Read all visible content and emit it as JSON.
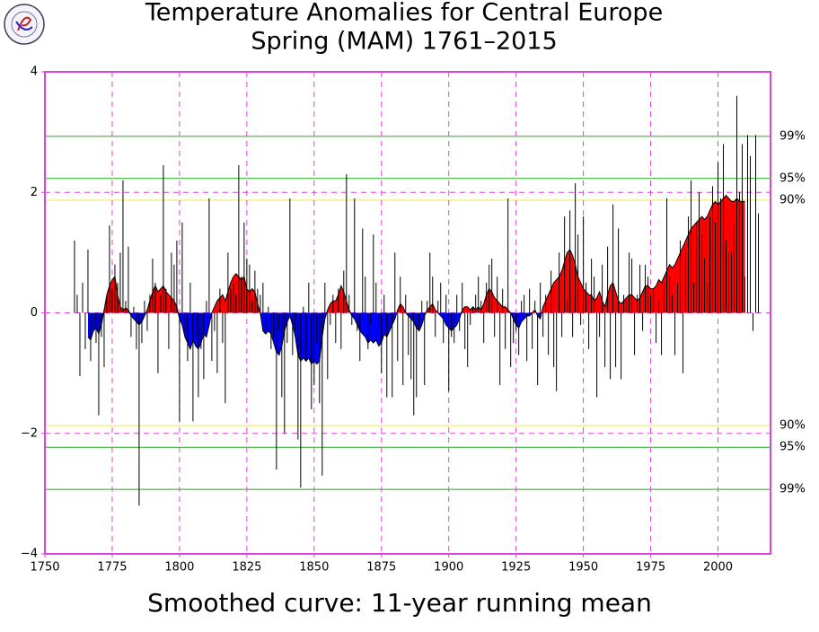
{
  "chart_data": {
    "type": "anomaly",
    "title": "Temperature Anomalies for Central Europe",
    "subtitle": "Spring (MAM) 1761–2015",
    "caption": "Smoothed curve: 11-year running mean",
    "xlim": [
      1750,
      2019.5
    ],
    "ylim": [
      -4,
      4
    ],
    "xticks": [
      1750,
      1775,
      1800,
      1825,
      1850,
      1875,
      1900,
      1925,
      1950,
      1975,
      2000
    ],
    "yticks": [
      {
        "value": -4,
        "label": "−4"
      },
      {
        "value": -2,
        "label": "−2"
      },
      0,
      2,
      4
    ],
    "grid": true,
    "grid_color": "#dd44dd",
    "frame_color": "#dd44dd",
    "bar_color": "#000000",
    "color_positive": "#ff0000",
    "color_negative": "#0000ff",
    "reference_lines": [
      {
        "value": 2.93,
        "label": "99%",
        "color": "#22aa22"
      },
      {
        "value": 2.23,
        "label": "95%",
        "color": "#22aa22"
      },
      {
        "value": 1.87,
        "label": "90%",
        "color": "#eeee44"
      },
      {
        "value": -1.87,
        "label": "90%",
        "color": "#eeee44"
      },
      {
        "value": -2.23,
        "label": "95%",
        "color": "#22aa22"
      },
      {
        "value": -2.93,
        "label": "99%",
        "color": "#22aa22"
      }
    ],
    "x": [
      1761,
      1762,
      1763,
      1764,
      1765,
      1766,
      1767,
      1768,
      1769,
      1770,
      1771,
      1772,
      1773,
      1774,
      1775,
      1776,
      1777,
      1778,
      1779,
      1780,
      1781,
      1782,
      1783,
      1784,
      1785,
      1786,
      1787,
      1788,
      1789,
      1790,
      1791,
      1792,
      1793,
      1794,
      1795,
      1796,
      1797,
      1798,
      1799,
      1800,
      1801,
      1802,
      1803,
      1804,
      1805,
      1806,
      1807,
      1808,
      1809,
      1810,
      1811,
      1812,
      1813,
      1814,
      1815,
      1816,
      1817,
      1818,
      1819,
      1820,
      1821,
      1822,
      1823,
      1824,
      1825,
      1826,
      1827,
      1828,
      1829,
      1830,
      1831,
      1832,
      1833,
      1834,
      1835,
      1836,
      1837,
      1838,
      1839,
      1840,
      1841,
      1842,
      1843,
      1844,
      1845,
      1846,
      1847,
      1848,
      1849,
      1850,
      1851,
      1852,
      1853,
      1854,
      1855,
      1856,
      1857,
      1858,
      1859,
      1860,
      1861,
      1862,
      1863,
      1864,
      1865,
      1866,
      1867,
      1868,
      1869,
      1870,
      1871,
      1872,
      1873,
      1874,
      1875,
      1876,
      1877,
      1878,
      1879,
      1880,
      1881,
      1882,
      1883,
      1884,
      1885,
      1886,
      1887,
      1888,
      1889,
      1890,
      1891,
      1892,
      1893,
      1894,
      1895,
      1896,
      1897,
      1898,
      1899,
      1900,
      1901,
      1902,
      1903,
      1904,
      1905,
      1906,
      1907,
      1908,
      1909,
      1910,
      1911,
      1912,
      1913,
      1914,
      1915,
      1916,
      1917,
      1918,
      1919,
      1920,
      1921,
      1922,
      1923,
      1924,
      1925,
      1926,
      1927,
      1928,
      1929,
      1930,
      1931,
      1932,
      1933,
      1934,
      1935,
      1936,
      1937,
      1938,
      1939,
      1940,
      1941,
      1942,
      1943,
      1944,
      1945,
      1946,
      1947,
      1948,
      1949,
      1950,
      1951,
      1952,
      1953,
      1954,
      1955,
      1956,
      1957,
      1958,
      1959,
      1960,
      1961,
      1962,
      1963,
      1964,
      1965,
      1966,
      1967,
      1968,
      1969,
      1970,
      1971,
      1972,
      1973,
      1974,
      1975,
      1976,
      1977,
      1978,
      1979,
      1980,
      1981,
      1982,
      1983,
      1984,
      1985,
      1986,
      1987,
      1988,
      1989,
      1990,
      1991,
      1992,
      1993,
      1994,
      1995,
      1996,
      1997,
      1998,
      1999,
      2000,
      2001,
      2002,
      2003,
      2004,
      2005,
      2006,
      2007,
      2008,
      2009,
      2010,
      2011,
      2012,
      2013,
      2014,
      2015
    ],
    "values": [
      1.2,
      0.3,
      -1.05,
      0.5,
      -0.6,
      1.05,
      -0.8,
      -0.3,
      -0.5,
      -1.7,
      -0.4,
      -0.9,
      0.3,
      1.45,
      0.4,
      0.8,
      0.5,
      1.0,
      2.2,
      0.2,
      1.1,
      -0.4,
      0.1,
      -0.6,
      -3.2,
      -0.5,
      0.2,
      -0.3,
      0.3,
      0.9,
      0.5,
      -1.0,
      0.3,
      2.45,
      0.4,
      -0.6,
      1.0,
      0.8,
      1.2,
      -1.8,
      1.5,
      -0.3,
      -0.8,
      0.5,
      -1.8,
      -0.4,
      -1.4,
      -0.6,
      -1.1,
      0.2,
      1.9,
      -0.8,
      -0.3,
      -1.0,
      0.4,
      -0.5,
      -1.5,
      1.0,
      0.4,
      0.5,
      0.3,
      2.45,
      0.6,
      1.5,
      0.9,
      0.8,
      0.2,
      0.7,
      0.4,
      0.3,
      0.5,
      -0.3,
      0.1,
      -0.6,
      -0.4,
      -2.6,
      -0.3,
      -1.4,
      -2.0,
      -0.5,
      1.9,
      -0.7,
      -0.3,
      -2.1,
      -2.9,
      0.1,
      -0.8,
      0.5,
      -1.6,
      -1.2,
      -0.5,
      -1.5,
      -2.7,
      0.5,
      -1.1,
      -0.2,
      0.3,
      -0.5,
      0.4,
      -0.6,
      0.7,
      2.3,
      0.3,
      -0.2,
      1.9,
      -0.3,
      -0.8,
      1.4,
      0.6,
      -0.6,
      -0.2,
      1.3,
      0.5,
      -0.2,
      -1.0,
      0.3,
      -1.4,
      -0.3,
      -1.4,
      1.0,
      -0.8,
      0.6,
      -1.2,
      0.3,
      -0.7,
      -1.1,
      -1.7,
      -1.4,
      -0.3,
      0.2,
      -1.2,
      0.2,
      1.0,
      0.6,
      -0.4,
      0.2,
      0.5,
      -0.5,
      0.3,
      -1.3,
      -0.4,
      -0.5,
      0.3,
      -0.3,
      0.5,
      -0.6,
      -0.9,
      -0.2,
      0.1,
      0.3,
      0.6,
      0.2,
      -0.5,
      0.5,
      0.8,
      0.9,
      -0.4,
      0.6,
      -1.2,
      0.4,
      -0.6,
      1.9,
      -0.9,
      -0.5,
      -0.3,
      -0.7,
      0.2,
      0.3,
      -0.8,
      0.4,
      -0.6,
      0.2,
      -1.2,
      0.5,
      -0.4,
      0.3,
      -0.7,
      0.7,
      -0.9,
      -1.3,
      1.0,
      -0.4,
      1.6,
      0.2,
      1.7,
      -0.4,
      2.15,
      1.3,
      -0.2,
      1.6,
      0.5,
      -0.6,
      0.9,
      0.6,
      -1.4,
      -0.4,
      0.8,
      -0.9,
      1.1,
      -1.1,
      1.8,
      -0.9,
      1.4,
      -1.1,
      0.3,
      0.2,
      1.0,
      0.9,
      -0.7,
      0.3,
      0.8,
      -0.3,
      0.8,
      0.6,
      0.3,
      0.4,
      -0.5,
      0.2,
      -0.7,
      0.5,
      1.9,
      0.6,
      0.3,
      -0.7,
      0.5,
      1.2,
      -1.0,
      1.0,
      1.6,
      2.2,
      0.5,
      1.5,
      2.0,
      1.3,
      0.9,
      0.5,
      1.6,
      2.1,
      1.5,
      2.5,
      1.9,
      2.8,
      1.2,
      1.0,
      1.0,
      1.5,
      3.6,
      2.0,
      2.8,
      0.6,
      2.95,
      2.6,
      -0.3,
      2.95,
      1.65
    ],
    "smoothed": [
      null,
      null,
      null,
      null,
      null,
      -0.4,
      -0.45,
      -0.3,
      -0.25,
      -0.35,
      -0.2,
      0.05,
      0.3,
      0.45,
      0.55,
      0.6,
      0.3,
      0.1,
      0.05,
      0.08,
      0.05,
      -0.05,
      -0.1,
      -0.15,
      -0.2,
      -0.15,
      -0.05,
      0.05,
      0.2,
      0.35,
      0.45,
      0.35,
      0.4,
      0.45,
      0.35,
      0.3,
      0.25,
      0.2,
      0.1,
      -0.1,
      -0.2,
      -0.4,
      -0.5,
      -0.6,
      -0.45,
      -0.55,
      -0.6,
      -0.5,
      -0.35,
      -0.4,
      -0.2,
      0.0,
      0.1,
      0.2,
      0.25,
      0.3,
      0.2,
      0.35,
      0.5,
      0.6,
      0.65,
      0.6,
      0.55,
      0.6,
      0.4,
      0.35,
      0.4,
      0.35,
      0.15,
      0.0,
      -0.3,
      -0.35,
      -0.3,
      -0.35,
      -0.5,
      -0.65,
      -0.7,
      -0.55,
      -0.3,
      -0.15,
      -0.05,
      -0.2,
      -0.4,
      -0.7,
      -0.8,
      -0.75,
      -0.8,
      -0.75,
      -0.85,
      -0.8,
      -0.85,
      -0.8,
      -0.4,
      -0.1,
      0.05,
      0.15,
      0.2,
      0.2,
      0.3,
      0.45,
      0.35,
      0.2,
      0.05,
      -0.05,
      -0.1,
      -0.2,
      -0.3,
      -0.35,
      -0.4,
      -0.5,
      -0.45,
      -0.5,
      -0.45,
      -0.55,
      -0.5,
      -0.35,
      -0.4,
      -0.3,
      -0.2,
      -0.1,
      0.05,
      0.15,
      0.1,
      0.0,
      -0.05,
      -0.1,
      -0.15,
      -0.25,
      -0.3,
      -0.2,
      -0.05,
      0.05,
      0.1,
      0.15,
      0.05,
      0.0,
      -0.05,
      -0.1,
      -0.2,
      -0.25,
      -0.3,
      -0.25,
      -0.2,
      -0.1,
      0.05,
      0.1,
      0.1,
      0.05,
      0.1,
      0.05,
      0.1,
      0.05,
      0.15,
      0.3,
      0.4,
      0.35,
      0.25,
      0.2,
      0.15,
      0.1,
      0.1,
      0.05,
      0.0,
      -0.1,
      -0.2,
      -0.25,
      -0.15,
      -0.1,
      -0.05,
      -0.05,
      0.0,
      0.05,
      -0.05,
      -0.1,
      0.1,
      0.2,
      0.3,
      0.4,
      0.5,
      0.55,
      0.6,
      0.7,
      0.85,
      1.0,
      1.05,
      0.95,
      0.8,
      0.6,
      0.5,
      0.4,
      0.35,
      0.3,
      0.3,
      0.2,
      0.25,
      0.35,
      0.2,
      0.1,
      0.3,
      0.45,
      0.5,
      0.35,
      0.2,
      0.15,
      0.2,
      0.25,
      0.3,
      0.3,
      0.25,
      0.2,
      0.25,
      0.35,
      0.45,
      0.45,
      0.4,
      0.4,
      0.45,
      0.55,
      0.5,
      0.6,
      0.7,
      0.8,
      0.75,
      0.8,
      0.9,
      1.0,
      1.1,
      1.2,
      1.3,
      1.4,
      1.45,
      1.5,
      1.55,
      1.6,
      1.55,
      1.6,
      1.7,
      1.8,
      1.85,
      1.8,
      1.85,
      1.9,
      1.95,
      1.9,
      1.85,
      1.85,
      1.9,
      1.85,
      1.85,
      1.85,
      null,
      null,
      null,
      null,
      null
    ]
  }
}
